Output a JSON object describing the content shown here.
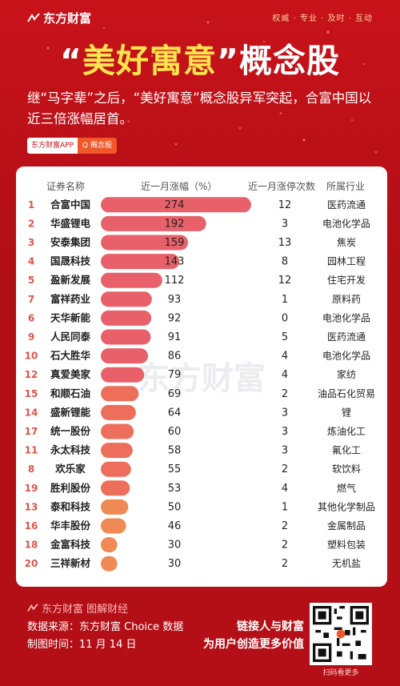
{
  "brand": {
    "logo_text": "东方财富",
    "slogan": "权威 · 专业 · 及时 · 互动"
  },
  "headline": {
    "quote_open": "“",
    "highlight": "美好寓意",
    "quote_close": "”",
    "rest": "概念股"
  },
  "intro": "继“马字辈”之后，“美好寓意”概念股异军突起，合富中国以近三倍涨幅居首。",
  "badge": {
    "app": "东方财富APP",
    "search": "Q 概念股"
  },
  "colors": {
    "bg": "#c8121a",
    "bar_top": "#e8616a",
    "bar_mid": "#ee6e5c",
    "bar_low": "#f08a55"
  },
  "table_headers": {
    "name": "证券名称",
    "change": "近一月涨幅（%）",
    "limit_up": "近一月涨停次数",
    "industry": "所属行业"
  },
  "chart_data": {
    "type": "bar",
    "title": "",
    "ylabel": "近一月涨幅（%）",
    "ylim": [
      0,
      274
    ],
    "categories": [
      "合富中国",
      "华盛锂电",
      "安泰集团",
      "国晟科技",
      "盈新发展",
      "富祥药业",
      "天华新能",
      "人民同泰",
      "石大胜华",
      "真爱美家",
      "和顺石油",
      "盛新锂能",
      "统一股份",
      "永太科技",
      "欢乐家",
      "胜利股份",
      "泰和科技",
      "华丰股份",
      "金富科技",
      "三祥新材"
    ],
    "ranks": [
      "1",
      "2",
      "3",
      "4",
      "5",
      "7",
      "6",
      "9",
      "10",
      "12",
      "15",
      "14",
      "17",
      "11",
      "8",
      "19",
      "13",
      "16",
      "18",
      "20"
    ],
    "values": [
      274,
      192,
      159,
      143,
      112,
      93,
      92,
      91,
      86,
      79,
      69,
      64,
      60,
      58,
      55,
      53,
      50,
      46,
      30,
      30
    ],
    "limit_up_counts": [
      "12",
      "3",
      "13",
      "8",
      "12",
      "1",
      "0",
      "5",
      "4",
      "4",
      "2",
      "3",
      "3",
      "3",
      "2",
      "4",
      "1",
      "2",
      "2",
      "2"
    ],
    "industries": [
      "医药流通",
      "电池化学品",
      "焦炭",
      "园林工程",
      "住宅开发",
      "原料药",
      "电池化学品",
      "医药流通",
      "电池化学品",
      "家纺",
      "油品石化贸易",
      "锂",
      "炼油化工",
      "氟化工",
      "软饮料",
      "燃气",
      "其他化学制品",
      "金属制品",
      "塑料包装",
      "无机盐"
    ]
  },
  "watermark": "东方财富",
  "footer": {
    "logo_text": "东方财富 图解财经",
    "source": "数据来源：东方财富 Choice 数据",
    "date": "制图时间：11 月 14 日",
    "cta_line1": "链接人与财富",
    "cta_line2": "为用户创造更多价值",
    "qr_caption": "扫码看更多"
  }
}
